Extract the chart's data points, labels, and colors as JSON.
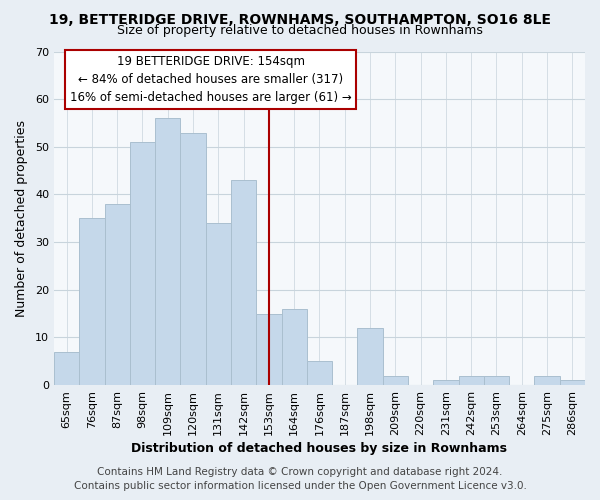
{
  "title": "19, BETTERIDGE DRIVE, ROWNHAMS, SOUTHAMPTON, SO16 8LE",
  "subtitle": "Size of property relative to detached houses in Rownhams",
  "xlabel": "Distribution of detached houses by size in Rownhams",
  "ylabel": "Number of detached properties",
  "footer_line1": "Contains HM Land Registry data © Crown copyright and database right 2024.",
  "footer_line2": "Contains public sector information licensed under the Open Government Licence v3.0.",
  "bar_labels": [
    "65sqm",
    "76sqm",
    "87sqm",
    "98sqm",
    "109sqm",
    "120sqm",
    "131sqm",
    "142sqm",
    "153sqm",
    "164sqm",
    "176sqm",
    "187sqm",
    "198sqm",
    "209sqm",
    "220sqm",
    "231sqm",
    "242sqm",
    "253sqm",
    "264sqm",
    "275sqm",
    "286sqm"
  ],
  "bar_values": [
    7,
    35,
    38,
    51,
    56,
    53,
    34,
    43,
    15,
    16,
    5,
    0,
    12,
    2,
    0,
    1,
    2,
    2,
    0,
    2,
    1
  ],
  "bar_color": "#c5d8ea",
  "bar_edge_color": "#aabfcf",
  "reference_line_index": 8,
  "reference_line_color": "#aa0000",
  "ylim": [
    0,
    70
  ],
  "yticks": [
    0,
    10,
    20,
    30,
    40,
    50,
    60,
    70
  ],
  "annotation_title": "19 BETTERIDGE DRIVE: 154sqm",
  "annotation_line1": "← 84% of detached houses are smaller (317)",
  "annotation_line2": "16% of semi-detached houses are larger (61) →",
  "annotation_box_edge_color": "#aa0000",
  "background_color": "#e8eef4",
  "plot_background_color": "#f5f8fb",
  "grid_color": "#c8d4dc",
  "title_fontsize": 10,
  "subtitle_fontsize": 9,
  "axis_label_fontsize": 9,
  "tick_fontsize": 8,
  "footer_fontsize": 7.5,
  "annotation_fontsize": 8.5
}
